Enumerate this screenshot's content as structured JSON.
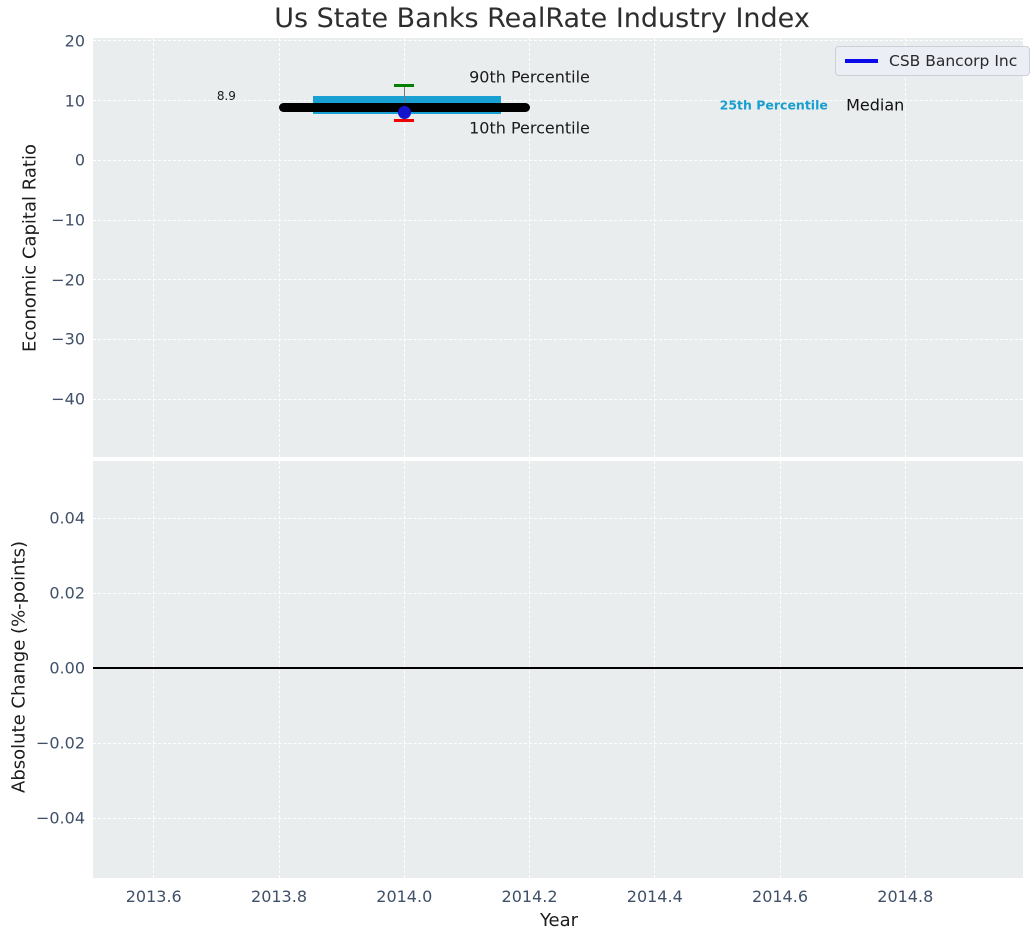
{
  "chart_data": {
    "type": "boxplot",
    "title": "Us State Banks RealRate Industry Index",
    "xlabel": "Year",
    "xlim": [
      2013.503,
      2014.988
    ],
    "xtick_values": [
      2013.6,
      2013.8,
      2014.0,
      2014.2,
      2014.4,
      2014.6,
      2014.8
    ],
    "xtick_labels": [
      "2013.6",
      "2013.8",
      "2014.0",
      "2014.2",
      "2014.4",
      "2014.6",
      "2014.8"
    ],
    "legend": {
      "label": "CSB Bancorp Inc",
      "color": "#0b0bea",
      "location": "upper right"
    },
    "grid": true,
    "panels": [
      {
        "ylabel": "Economic Capital Ratio",
        "ylim": [
          -49.7,
          20.5
        ],
        "ytick_values": [
          20,
          10,
          0,
          -10,
          -20,
          -30,
          -40
        ],
        "ytick_labels": [
          "20",
          "10",
          "0",
          "−10",
          "−20",
          "−30",
          "−40"
        ],
        "industry_box": {
          "x": 2014.0,
          "median": 8.9,
          "median_line_span": [
            2013.8,
            2014.2
          ],
          "box_span": [
            2013.855,
            2014.155
          ],
          "q25": 7.7,
          "q75": 10.7,
          "p10": 6.7,
          "p90": 12.5,
          "colors": {
            "median_line": "#000000",
            "box": "#18a0d2",
            "p90_cap": "#007f00",
            "p10_cap": "#f10000",
            "whisker": "#787878"
          }
        },
        "series": [
          {
            "name": "CSB Bancorp Inc",
            "x": 2014.0,
            "y": 8.0,
            "marker": "circle",
            "marker_color": "#1414cc"
          }
        ],
        "annotations": [
          {
            "text": "8.9",
            "x": 2013.716,
            "y": 10.7,
            "size": 12,
            "weight": "normal",
            "color": "#1a1a1a"
          },
          {
            "text": "90th Percentile",
            "x": 2014.2,
            "y": 13.9,
            "size": 16,
            "weight": "normal",
            "color": "#1a1a1a"
          },
          {
            "text": "10th Percentile",
            "x": 2014.2,
            "y": 5.5,
            "size": 16,
            "weight": "normal",
            "color": "#1a1a1a"
          },
          {
            "text": "25th Percentile",
            "x": 2014.59,
            "y": 9.2,
            "size": 12.5,
            "weight": "bold",
            "color": "#189ecf"
          },
          {
            "text": "Median",
            "x": 2014.752,
            "y": 9.2,
            "size": 16,
            "weight": "normal",
            "color": "#111111"
          }
        ]
      },
      {
        "ylabel": "Absolute Change (%-points)",
        "ylim": [
          -0.056,
          0.0552
        ],
        "ytick_values": [
          0.04,
          0.02,
          0.0,
          -0.02,
          -0.04
        ],
        "ytick_labels": [
          "0.04",
          "0.02",
          "0.00",
          "−0.02",
          "−0.04"
        ],
        "zero_line": {
          "y": 0.0,
          "color": "#000000"
        },
        "annotations": []
      }
    ],
    "styles": {
      "plot_bg": "#e9edee",
      "grid_color": "#ffffff",
      "tick_label_color": "#3f5069",
      "title_color": "#2e2e2e",
      "axis_label_color": "#1c1c1c"
    }
  }
}
